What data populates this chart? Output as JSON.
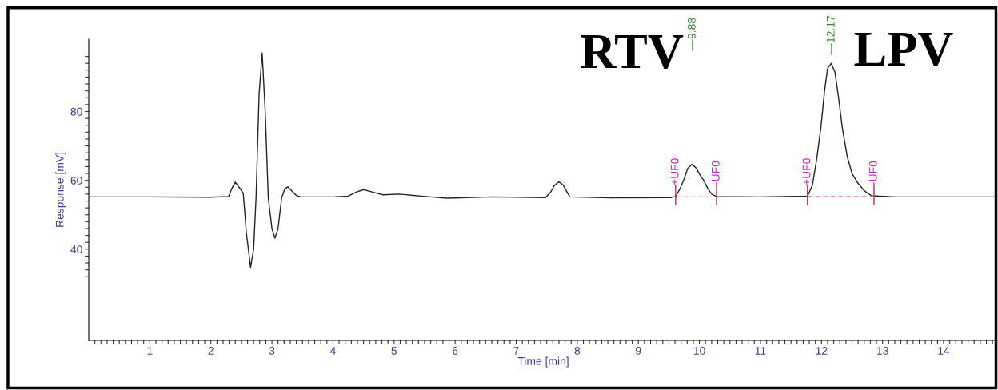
{
  "chart_data": {
    "type": "line",
    "xlabel": "Time [min]",
    "ylabel": "Response [mV]",
    "xlim": [
      0,
      14.89
    ],
    "ylim": [
      13.5,
      101
    ],
    "xticks": [
      {
        "value": 0.1,
        "label": null
      },
      {
        "value": 0.2,
        "label": null
      },
      {
        "value": 0.3,
        "label": null
      },
      {
        "value": 0.4,
        "label": null
      },
      {
        "value": 0.5,
        "label": null
      },
      {
        "value": 0.6,
        "label": null
      },
      {
        "value": 0.7,
        "label": null
      },
      {
        "value": 0.8,
        "label": null
      },
      {
        "value": 0.9,
        "label": null
      },
      1,
      {
        "value": 1.1,
        "label": null
      },
      {
        "value": 1.2,
        "label": null
      },
      {
        "value": 1.3,
        "label": null
      },
      {
        "value": 1.4,
        "label": null
      },
      {
        "value": 1.5,
        "label": null
      },
      {
        "value": 1.6,
        "label": null
      },
      {
        "value": 1.7,
        "label": null
      },
      {
        "value": 1.8,
        "label": null
      },
      {
        "value": 1.9,
        "label": null
      },
      2,
      {
        "value": 2.1,
        "label": null
      },
      {
        "value": 2.2,
        "label": null
      },
      {
        "value": 2.3,
        "label": null
      },
      {
        "value": 2.4,
        "label": null
      },
      {
        "value": 2.5,
        "label": null
      },
      {
        "value": 2.6,
        "label": null
      },
      {
        "value": 2.7,
        "label": null
      },
      {
        "value": 2.8,
        "label": null
      },
      {
        "value": 2.9,
        "label": null
      },
      3,
      {
        "value": 3.1,
        "label": null
      },
      {
        "value": 3.2,
        "label": null
      },
      {
        "value": 3.3,
        "label": null
      },
      {
        "value": 3.4,
        "label": null
      },
      {
        "value": 3.5,
        "label": null
      },
      {
        "value": 3.6,
        "label": null
      },
      {
        "value": 3.7,
        "label": null
      },
      {
        "value": 3.8,
        "label": null
      },
      {
        "value": 3.9,
        "label": null
      },
      4,
      {
        "value": 4.1,
        "label": null
      },
      {
        "value": 4.2,
        "label": null
      },
      {
        "value": 4.3,
        "label": null
      },
      {
        "value": 4.4,
        "label": null
      },
      {
        "value": 4.5,
        "label": null
      },
      {
        "value": 4.6,
        "label": null
      },
      {
        "value": 4.7,
        "label": null
      },
      {
        "value": 4.8,
        "label": null
      },
      {
        "value": 4.9,
        "label": null
      },
      5,
      {
        "value": 5.1,
        "label": null
      },
      {
        "value": 5.2,
        "label": null
      },
      {
        "value": 5.3,
        "label": null
      },
      {
        "value": 5.4,
        "label": null
      },
      {
        "value": 5.5,
        "label": null
      },
      {
        "value": 5.6,
        "label": null
      },
      {
        "value": 5.7,
        "label": null
      },
      {
        "value": 5.8,
        "label": null
      },
      {
        "value": 5.9,
        "label": null
      },
      6,
      {
        "value": 6.1,
        "label": null
      },
      {
        "value": 6.2,
        "label": null
      },
      {
        "value": 6.3,
        "label": null
      },
      {
        "value": 6.4,
        "label": null
      },
      {
        "value": 6.5,
        "label": null
      },
      {
        "value": 6.6,
        "label": null
      },
      {
        "value": 6.7,
        "label": null
      },
      {
        "value": 6.8,
        "label": null
      },
      {
        "value": 6.9,
        "label": null
      },
      7,
      {
        "value": 7.1,
        "label": null
      },
      {
        "value": 7.2,
        "label": null
      },
      {
        "value": 7.3,
        "label": null
      },
      {
        "value": 7.4,
        "label": null
      },
      {
        "value": 7.5,
        "label": null
      },
      {
        "value": 7.6,
        "label": null
      },
      {
        "value": 7.7,
        "label": null
      },
      {
        "value": 7.8,
        "label": null
      },
      {
        "value": 7.9,
        "label": null
      },
      8,
      {
        "value": 8.1,
        "label": null
      },
      {
        "value": 8.2,
        "label": null
      },
      {
        "value": 8.3,
        "label": null
      },
      {
        "value": 8.4,
        "label": null
      },
      {
        "value": 8.5,
        "label": null
      },
      {
        "value": 8.6,
        "label": null
      },
      {
        "value": 8.7,
        "label": null
      },
      {
        "value": 8.8,
        "label": null
      },
      {
        "value": 8.9,
        "label": null
      },
      9,
      {
        "value": 9.1,
        "label": null
      },
      {
        "value": 9.2,
        "label": null
      },
      {
        "value": 9.3,
        "label": null
      },
      {
        "value": 9.4,
        "label": null
      },
      {
        "value": 9.5,
        "label": null
      },
      {
        "value": 9.6,
        "label": null
      },
      {
        "value": 9.7,
        "label": null
      },
      {
        "value": 9.8,
        "label": null
      },
      {
        "value": 9.9,
        "label": null
      },
      10,
      {
        "value": 10.1,
        "label": null
      },
      {
        "value": 10.2,
        "label": null
      },
      {
        "value": 10.3,
        "label": null
      },
      {
        "value": 10.4,
        "label": null
      },
      {
        "value": 10.5,
        "label": null
      },
      {
        "value": 10.6,
        "label": null
      },
      {
        "value": 10.7,
        "label": null
      },
      {
        "value": 10.8,
        "label": null
      },
      {
        "value": 10.9,
        "label": null
      },
      11,
      {
        "value": 11.1,
        "label": null
      },
      {
        "value": 11.2,
        "label": null
      },
      {
        "value": 11.3,
        "label": null
      },
      {
        "value": 11.4,
        "label": null
      },
      {
        "value": 11.5,
        "label": null
      },
      {
        "value": 11.6,
        "label": null
      },
      {
        "value": 11.7,
        "label": null
      },
      {
        "value": 11.8,
        "label": null
      },
      {
        "value": 11.9,
        "label": null
      },
      12,
      {
        "value": 12.1,
        "label": null
      },
      {
        "value": 12.2,
        "label": null
      },
      {
        "value": 12.3,
        "label": null
      },
      {
        "value": 12.4,
        "label": null
      },
      {
        "value": 12.5,
        "label": null
      },
      {
        "value": 12.6,
        "label": null
      },
      {
        "value": 12.7,
        "label": null
      },
      {
        "value": 12.8,
        "label": null
      },
      {
        "value": 12.9,
        "label": null
      },
      13,
      {
        "value": 13.1,
        "label": null
      },
      {
        "value": 13.2,
        "label": null
      },
      {
        "value": 13.3,
        "label": null
      },
      {
        "value": 13.4,
        "label": null
      },
      {
        "value": 13.5,
        "label": null
      },
      {
        "value": 13.6,
        "label": null
      },
      {
        "value": 13.7,
        "label": null
      },
      {
        "value": 13.8,
        "label": null
      },
      {
        "value": 13.9,
        "label": null
      },
      14,
      {
        "value": 14.1,
        "label": null
      },
      {
        "value": 14.2,
        "label": null
      },
      {
        "value": 14.3,
        "label": null
      },
      {
        "value": 14.4,
        "label": null
      },
      {
        "value": 14.5,
        "label": null
      },
      {
        "value": 14.6,
        "label": null
      },
      {
        "value": 14.7,
        "label": null
      },
      {
        "value": 14.8,
        "label": null
      }
    ],
    "yticks": [
      {
        "value": 32,
        "label": null
      },
      {
        "value": 34,
        "label": null
      },
      {
        "value": 36,
        "label": null
      },
      {
        "value": 38,
        "label": null
      },
      40,
      {
        "value": 42,
        "label": null
      },
      {
        "value": 44,
        "label": null
      },
      {
        "value": 46,
        "label": null
      },
      {
        "value": 48,
        "label": null
      },
      {
        "value": 50,
        "label": null
      },
      {
        "value": 52,
        "label": null
      },
      {
        "value": 54,
        "label": null
      },
      {
        "value": 56,
        "label": null
      },
      {
        "value": 58,
        "label": null
      },
      60,
      {
        "value": 62,
        "label": null
      },
      {
        "value": 64,
        "label": null
      },
      {
        "value": 66,
        "label": null
      },
      {
        "value": 68,
        "label": null
      },
      {
        "value": 70,
        "label": null
      },
      {
        "value": 72,
        "label": null
      },
      {
        "value": 74,
        "label": null
      },
      {
        "value": 76,
        "label": null
      },
      {
        "value": 78,
        "label": null
      },
      80,
      {
        "value": 82,
        "label": null
      },
      {
        "value": 84,
        "label": null
      },
      {
        "value": 86,
        "label": null
      },
      {
        "value": 88,
        "label": null
      },
      {
        "value": 90,
        "label": null
      },
      {
        "value": 92,
        "label": null
      },
      {
        "value": 94,
        "label": null
      },
      {
        "value": 96,
        "label": null
      }
    ],
    "grid": false,
    "legend": false,
    "marker": "none",
    "line_style": "solid",
    "series": [
      {
        "color": "#222222",
        "x": [
          0,
          1.0,
          2.0,
          2.29,
          2.34,
          2.4,
          2.46,
          2.53,
          2.58,
          2.65,
          2.7,
          2.74,
          2.79,
          2.84,
          2.89,
          2.94,
          3.0,
          3.05,
          3.1,
          3.16,
          3.21,
          3.26,
          3.32,
          3.4,
          3.47,
          4.0,
          4.25,
          4.38,
          4.5,
          4.65,
          4.82,
          5.08,
          5.52,
          5.87,
          6.61,
          7.48,
          7.56,
          7.63,
          7.7,
          7.77,
          7.84,
          7.88,
          8.58,
          9.54,
          9.61,
          9.68,
          9.74,
          9.81,
          9.88,
          9.95,
          10.01,
          10.07,
          10.14,
          10.2,
          10.28,
          11.0,
          11.77,
          11.85,
          11.92,
          11.99,
          12.05,
          12.1,
          12.16,
          12.22,
          12.28,
          12.34,
          12.42,
          12.5,
          12.6,
          12.7,
          12.82,
          13.21,
          14.89
        ],
        "values": [
          55.2,
          55.2,
          55.1,
          55.3,
          57.5,
          59.5,
          58.0,
          56.3,
          45.0,
          34.7,
          40.0,
          55.0,
          85.0,
          97.0,
          80.0,
          55.0,
          46.0,
          43.2,
          46.0,
          55.0,
          57.5,
          58.1,
          57.0,
          55.6,
          55.2,
          55.2,
          55.4,
          56.6,
          57.3,
          56.6,
          55.8,
          56.0,
          55.3,
          54.8,
          55.2,
          55.0,
          56.5,
          58.6,
          59.6,
          58.6,
          56.3,
          55.2,
          54.9,
          55.0,
          55.3,
          57.5,
          60.0,
          63.5,
          64.7,
          63.5,
          61.5,
          60.0,
          57.5,
          56.0,
          55.3,
          55.2,
          55.4,
          58.5,
          66.0,
          75.3,
          86.0,
          92.5,
          94.0,
          91.5,
          84.0,
          75.3,
          67.0,
          62.0,
          59.1,
          57.0,
          55.5,
          55.2,
          55.2
        ]
      },
      {
        "color": "#d9748a",
        "x": [
          9.61,
          10.28
        ],
        "values": [
          55.2,
          55.2
        ],
        "line_style": "dashed"
      },
      {
        "color": "#d9748a",
        "x": [
          11.77,
          12.86
        ],
        "values": [
          55.3,
          55.3
        ],
        "line_style": "dashed"
      }
    ],
    "annotations": [
      {
        "text": "+UF0",
        "x": 9.61,
        "y": 55.2
      },
      {
        "text": "-UF0",
        "x": 10.28,
        "y": 55.2
      },
      {
        "text": "+UF0",
        "x": 11.77,
        "y": 55.2
      },
      {
        "text": "-UF0",
        "x": 12.86,
        "y": 55.2
      },
      "9.88",
      "12.17",
      "RTV",
      "LPV"
    ]
  }
}
